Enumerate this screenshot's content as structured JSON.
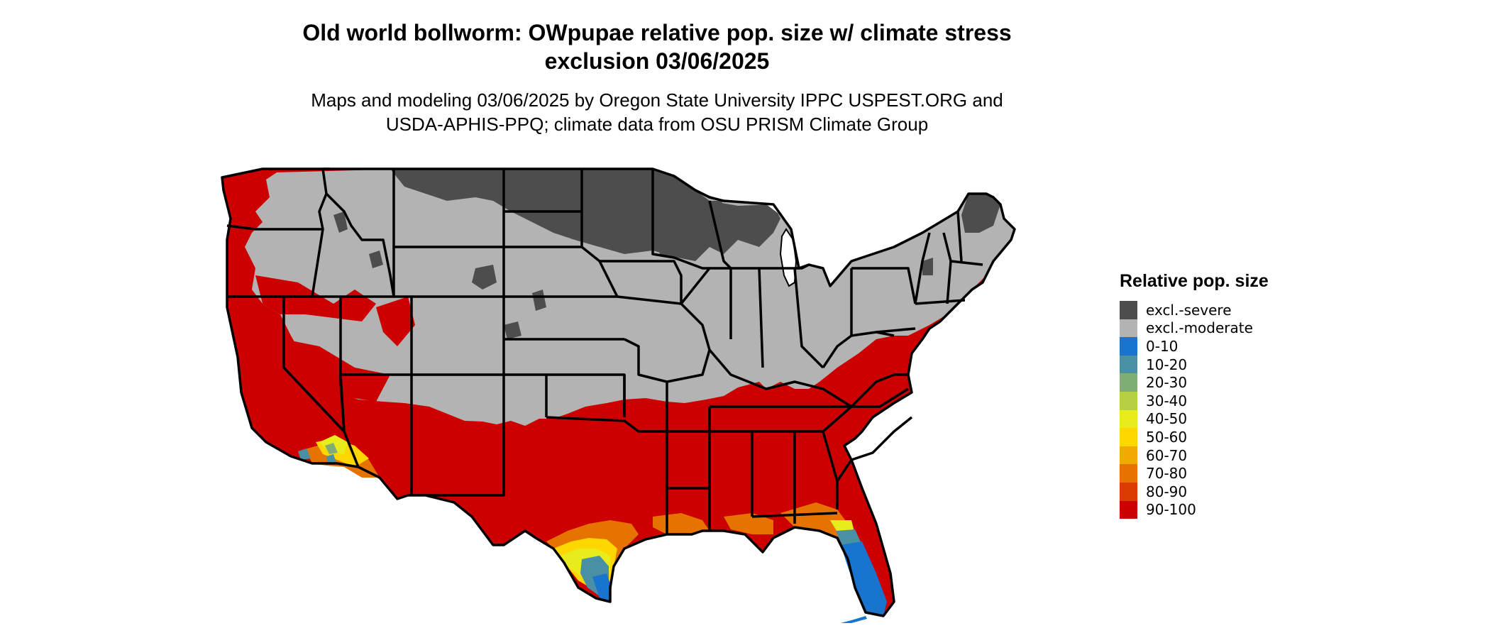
{
  "title": {
    "line1": "Old world bollworm: OWpupae relative pop. size w/ climate stress",
    "line2": "exclusion 03/06/2025"
  },
  "subtitle": {
    "line1": "Maps and modeling 03/06/2025 by Oregon State University IPPC USPEST.ORG and",
    "line2": "USDA-APHIS-PPQ; climate data from OSU PRISM Climate Group"
  },
  "legend": {
    "title": "Relative pop. size",
    "items": [
      {
        "label": "excl.-severe",
        "color": "#4d4d4d"
      },
      {
        "label": "excl.-moderate",
        "color": "#b3b3b3"
      },
      {
        "label": "0-10",
        "color": "#1874cd"
      },
      {
        "label": "10-20",
        "color": "#4a90a4"
      },
      {
        "label": "20-30",
        "color": "#7fae74"
      },
      {
        "label": "30-40",
        "color": "#b5cf46"
      },
      {
        "label": "40-50",
        "color": "#e8ec1c"
      },
      {
        "label": "50-60",
        "color": "#ffd700"
      },
      {
        "label": "60-70",
        "color": "#f2a900"
      },
      {
        "label": "70-80",
        "color": "#e67300"
      },
      {
        "label": "80-90",
        "color": "#d93b00"
      },
      {
        "label": "90-100",
        "color": "#cc0000"
      }
    ]
  }
}
